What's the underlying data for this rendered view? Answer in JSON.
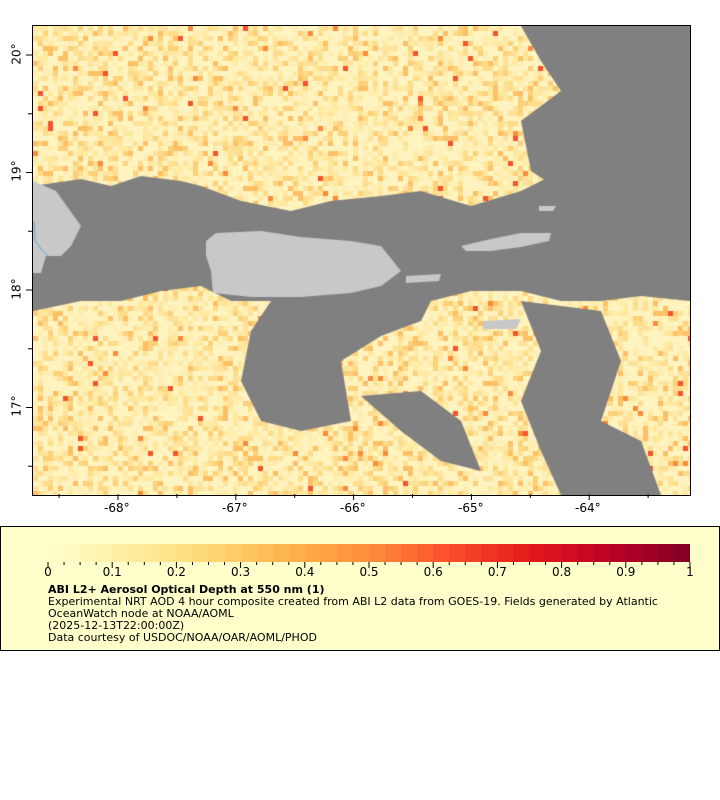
{
  "map": {
    "lon_ticks": [
      "-68°",
      "-67°",
      "-66°",
      "-65°",
      "-64°"
    ],
    "lat_ticks": [
      "20°",
      "19°",
      "18°",
      "17°"
    ],
    "colors": {
      "no_data": "#808080",
      "land": "#c8c8c8",
      "river": "#5ba3d9"
    }
  },
  "legend": {
    "range": [
      0,
      1
    ],
    "tick_labels": [
      "0",
      "0.1",
      "0.2",
      "0.3",
      "0.4",
      "0.5",
      "0.6",
      "0.7",
      "0.8",
      "0.9",
      "1"
    ],
    "title": "ABI L2+ Aerosol Optical Depth at 550 nm (1)",
    "description_line1": "Experimental NRT AOD 4 hour composite created from ABI L2 data from GOES-19. Fields generated by Atlantic",
    "description_line2": "OceanWatch node at NOAA/AOML",
    "time": "(2025-12-13T22:00:00Z)",
    "credit": "Data courtesy of USDOC/NOAA/OAR/AOML/PHOD",
    "colorscale": [
      "#ffffcc",
      "#ffeda0",
      "#fed976",
      "#feb24c",
      "#fd8d3c",
      "#fc4e2a",
      "#e31a1c",
      "#bd0026",
      "#800026"
    ]
  }
}
